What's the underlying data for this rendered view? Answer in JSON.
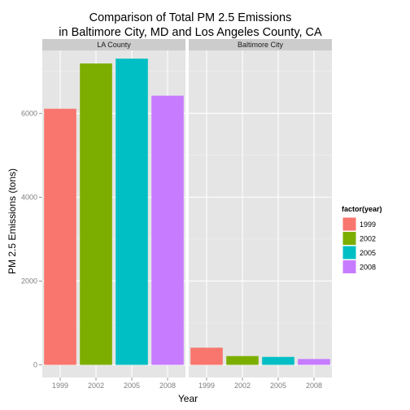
{
  "chart_data": {
    "type": "bar",
    "title": "Comparison of Total PM 2.5 Emissions\nin Baltimore City, MD and Los Angeles County, CA",
    "xlabel": "Year",
    "ylabel": "PM 2.5 Emissions (tons)",
    "categories": [
      "1999",
      "2002",
      "2005",
      "2008"
    ],
    "ylim": [
      -300,
      7500
    ],
    "yticks": [
      0,
      2000,
      4000,
      6000
    ],
    "grid": true,
    "legend": {
      "title": "factor(year)",
      "position": "right",
      "entries": [
        "1999",
        "2002",
        "2005",
        "2008"
      ]
    },
    "colors": {
      "1999": "#F8766D",
      "2002": "#7CAE00",
      "2005": "#00BFC4",
      "2008": "#C77CFF"
    },
    "panels": [
      {
        "name": "LA County",
        "values": [
          6109,
          7189,
          7305,
          6421
        ]
      },
      {
        "name": "Baltimore City",
        "values": [
          410,
          210,
          190,
          140
        ]
      }
    ]
  }
}
